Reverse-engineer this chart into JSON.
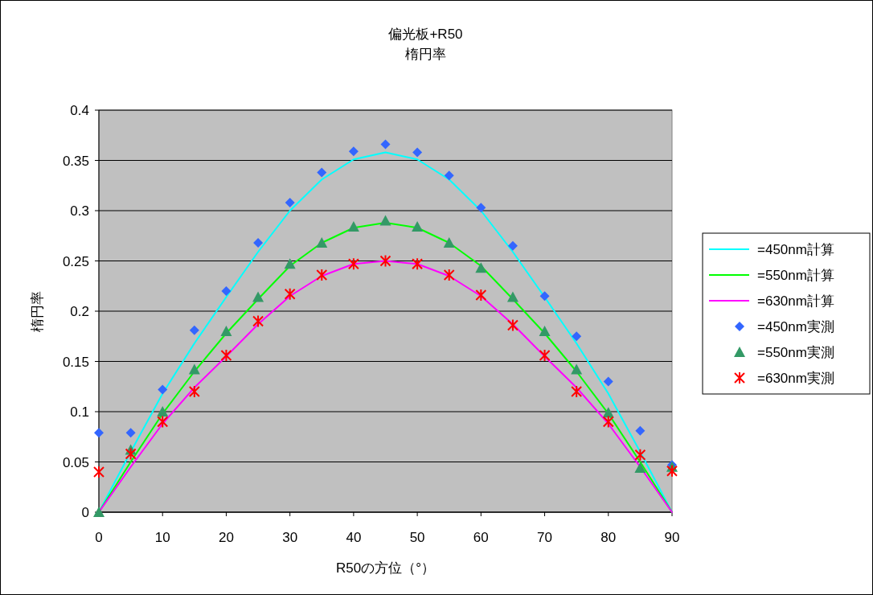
{
  "chart_data": {
    "type": "line",
    "title": "偏光板+R50",
    "subtitle": "楕円率",
    "xlabel": "R50の方位（°）",
    "ylabel": "楕円率",
    "x": [
      0,
      5,
      10,
      15,
      20,
      25,
      30,
      35,
      40,
      45,
      50,
      55,
      60,
      65,
      70,
      75,
      80,
      85,
      90
    ],
    "xlim": [
      0,
      90
    ],
    "xticks": [
      0,
      10,
      20,
      30,
      40,
      50,
      60,
      70,
      80,
      90
    ],
    "ylim": [
      0,
      0.4
    ],
    "yticks": [
      0,
      0.05,
      0.1,
      0.15,
      0.2,
      0.25,
      0.3,
      0.35,
      0.4
    ],
    "grid": "y",
    "legend": "right",
    "series": [
      {
        "name": "=450nm計算",
        "marker": "none",
        "color": "#00ffff",
        "values": [
          0,
          0.06,
          0.118,
          0.168,
          0.214,
          0.259,
          0.3,
          0.331,
          0.351,
          0.358,
          0.351,
          0.331,
          0.3,
          0.259,
          0.214,
          0.168,
          0.118,
          0.06,
          0
        ]
      },
      {
        "name": "=550nm計算",
        "marker": "none",
        "color": "#00ff00",
        "values": [
          0,
          0.05,
          0.098,
          0.14,
          0.178,
          0.212,
          0.245,
          0.268,
          0.283,
          0.288,
          0.283,
          0.268,
          0.245,
          0.212,
          0.178,
          0.14,
          0.098,
          0.05,
          0
        ]
      },
      {
        "name": "=630nm計算",
        "marker": "none",
        "color": "#ff00ff",
        "values": [
          0,
          0.045,
          0.088,
          0.124,
          0.155,
          0.187,
          0.215,
          0.235,
          0.247,
          0.25,
          0.247,
          0.235,
          0.215,
          0.187,
          0.155,
          0.124,
          0.088,
          0.045,
          0
        ]
      },
      {
        "name": "=450nm実測",
        "type": "scatter",
        "marker": "diamond",
        "color": "#3366ff",
        "values": [
          0.079,
          0.079,
          0.122,
          0.181,
          0.22,
          0.268,
          0.308,
          0.338,
          0.359,
          0.366,
          0.358,
          0.335,
          0.303,
          0.265,
          0.215,
          0.175,
          0.13,
          0.081,
          0.047
        ]
      },
      {
        "name": "=550nm実測",
        "type": "scatter",
        "marker": "triangle",
        "color": "#339966",
        "values": [
          0,
          0.062,
          0.1,
          0.142,
          0.18,
          0.214,
          0.247,
          0.268,
          0.284,
          0.29,
          0.284,
          0.268,
          0.243,
          0.214,
          0.18,
          0.142,
          0.099,
          0.044,
          0.045
        ]
      },
      {
        "name": "=630nm実測",
        "type": "scatter",
        "marker": "cross",
        "color": "#ff0000",
        "values": [
          0.04,
          0.058,
          0.09,
          0.12,
          0.156,
          0.19,
          0.217,
          0.236,
          0.247,
          0.25,
          0.247,
          0.236,
          0.216,
          0.186,
          0.156,
          0.12,
          0.09,
          0.057,
          0.041
        ]
      }
    ]
  }
}
